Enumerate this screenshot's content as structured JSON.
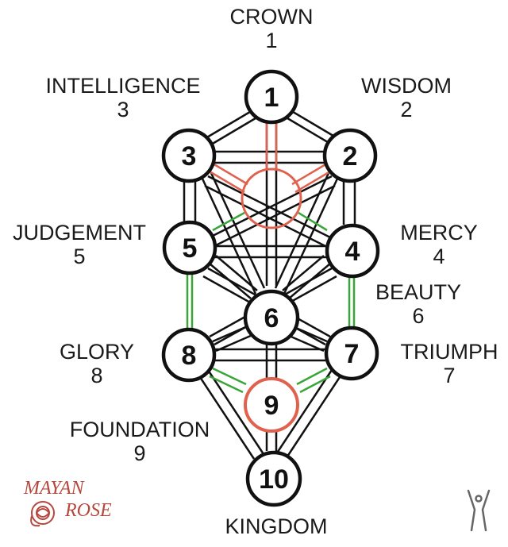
{
  "labels": {
    "crown": {
      "name": "CROWN",
      "number": "1"
    },
    "wisdom": {
      "name": "WISDOM",
      "number": "2"
    },
    "intelligence": {
      "name": "INTELLIGENCE",
      "number": "3"
    },
    "mercy": {
      "name": "MERCY",
      "number": "4"
    },
    "judgement": {
      "name": "JUDGEMENT",
      "number": "5"
    },
    "beauty": {
      "name": "BEAUTY",
      "number": "6"
    },
    "triumph": {
      "name": "TRIUMPH",
      "number": "7"
    },
    "glory": {
      "name": "GLORY",
      "number": "8"
    },
    "foundation": {
      "name": "FOUNDATION",
      "number": "9"
    },
    "kingdom": {
      "name": "KINGDOM"
    }
  },
  "nodes": [
    {
      "key": "1",
      "label": "1"
    },
    {
      "key": "2",
      "label": "2"
    },
    {
      "key": "3",
      "label": "3"
    },
    {
      "key": "4",
      "label": "4"
    },
    {
      "key": "5",
      "label": "5"
    },
    {
      "key": "6",
      "label": "6"
    },
    {
      "key": "7",
      "label": "7"
    },
    {
      "key": "8",
      "label": "8"
    },
    {
      "key": "9",
      "label": "9"
    },
    {
      "key": "10",
      "label": "10"
    }
  ],
  "logo": {
    "line1": "MAYAN",
    "line2": "ROSE"
  },
  "colors": {
    "path": "#111111",
    "highlight_red": "#e0624e",
    "highlight_green": "#3aa63a",
    "node_fill": "#ffffff",
    "logo": "#b5483c"
  }
}
